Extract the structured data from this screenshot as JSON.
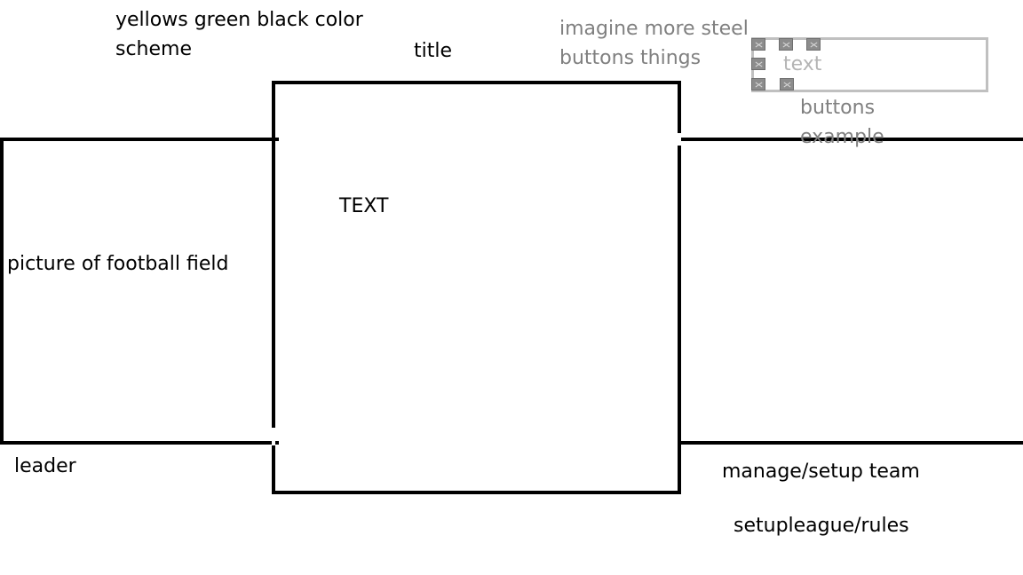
{
  "notes": {
    "color_scheme_line1": "yellows green black color",
    "color_scheme_line2": "scheme",
    "title": "title",
    "steel_line1": "imagine more steel",
    "steel_line2": "buttons things",
    "buttons_example_line1": "buttons",
    "buttons_example_line2": "example"
  },
  "button_example": {
    "text": "text"
  },
  "left_panel": {
    "label": "picture of football field",
    "below_label": "leader"
  },
  "center_panel": {
    "text": "TEXT"
  },
  "right_panel": {
    "link_manage": "manage/setup team",
    "link_league": "setupleague/rules"
  },
  "colors": {
    "line": "#000000",
    "note_gray": "#808080",
    "button_text": "#b4b4b4",
    "button_border": "#c0c0c0",
    "rivet": "#8c8c8c"
  },
  "icons": [
    "rivet-icon"
  ]
}
